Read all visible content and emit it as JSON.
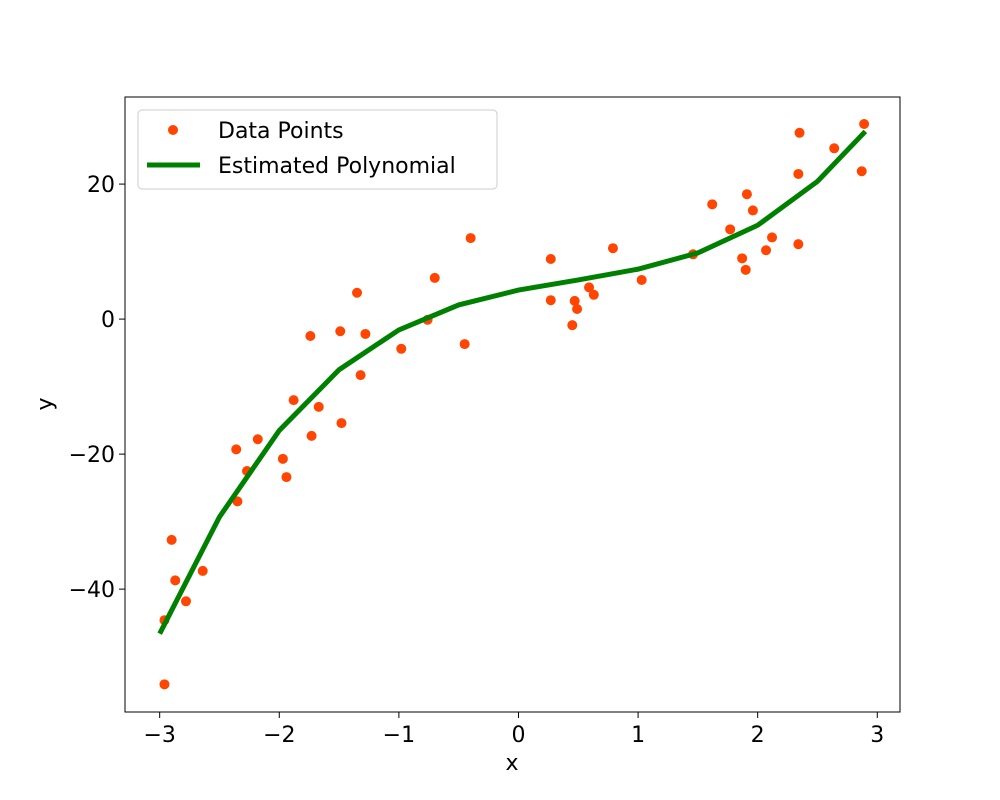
{
  "chart_data": {
    "type": "scatter",
    "x_label": "x",
    "y_label": "y",
    "xlim": [
      -3.29,
      3.19
    ],
    "ylim": [
      -58.2,
      32.9
    ],
    "xticks": [
      {
        "value": -3,
        "label": "−3"
      },
      {
        "value": -2,
        "label": "−2"
      },
      {
        "value": -1,
        "label": "−1"
      },
      0,
      1,
      2,
      3
    ],
    "yticks": [
      {
        "value": -40,
        "label": "−40"
      },
      {
        "value": -20,
        "label": "−20"
      },
      0,
      20
    ],
    "legend": "upper left",
    "series": [
      {
        "name": "Data Points",
        "type": "scatter",
        "color": "#ff4500",
        "x": [
          -2.96,
          -2.96,
          -2.9,
          -2.87,
          -2.78,
          -2.64,
          -2.36,
          -2.35,
          -2.27,
          -2.18,
          -1.97,
          -1.94,
          -1.88,
          -1.74,
          -1.73,
          -1.67,
          -1.49,
          -1.48,
          -1.35,
          -1.32,
          -1.28,
          -0.98,
          -0.76,
          -0.7,
          -0.45,
          -0.4,
          0.27,
          0.27,
          0.45,
          0.47,
          0.49,
          0.59,
          0.63,
          0.79,
          1.03,
          1.46,
          1.62,
          1.77,
          1.87,
          1.9,
          1.91,
          1.96,
          2.07,
          2.12,
          2.34,
          2.34,
          2.35,
          2.64,
          2.87,
          2.89
        ],
        "y": [
          -54.1,
          -44.6,
          -32.7,
          -38.7,
          -41.8,
          -37.3,
          -19.3,
          -27.0,
          -22.5,
          -17.8,
          -20.7,
          -23.4,
          -12.0,
          -2.5,
          -17.3,
          -13.0,
          -1.8,
          -15.4,
          3.9,
          -8.3,
          -2.2,
          -4.4,
          -0.1,
          6.1,
          -3.7,
          12.0,
          8.9,
          2.8,
          -0.9,
          2.7,
          1.5,
          4.7,
          3.6,
          10.5,
          5.8,
          9.6,
          17.0,
          13.3,
          9.0,
          7.3,
          18.5,
          16.1,
          10.2,
          12.1,
          21.5,
          11.1,
          27.6,
          25.3,
          21.9,
          28.9
        ]
      },
      {
        "name": "Estimated Polynomial",
        "type": "line",
        "color": "#008000",
        "x": [
          -3,
          -2.5,
          -2,
          -1.5,
          -1,
          -0.5,
          0,
          0.5,
          1,
          1.5,
          2,
          2.5,
          2.9
        ],
        "y": [
          -46.6,
          -29.3,
          -16.5,
          -7.5,
          -1.6,
          2.1,
          4.3,
          5.8,
          7.4,
          9.8,
          13.9,
          20.4,
          27.8
        ]
      }
    ]
  }
}
